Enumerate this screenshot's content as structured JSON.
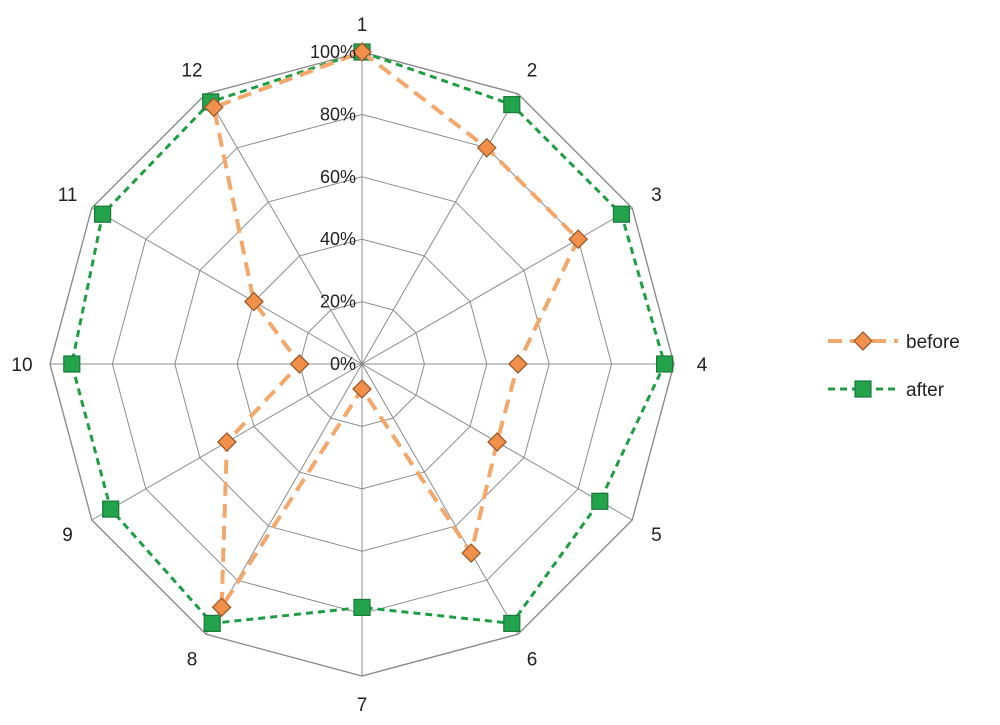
{
  "chart_data": {
    "type": "radar",
    "categories": [
      "1",
      "2",
      "3",
      "4",
      "5",
      "6",
      "7",
      "8",
      "9",
      "10",
      "11",
      "12"
    ],
    "r_ticks": [
      "0%",
      "20%",
      "40%",
      "60%",
      "80%",
      "100%"
    ],
    "r_range": [
      0,
      100
    ],
    "grid": true,
    "legend_position": "right",
    "series": [
      {
        "name": "before",
        "values": [
          100,
          80,
          80,
          50,
          50,
          70,
          8,
          90,
          50,
          20,
          40,
          95
        ],
        "color": "#F4A76B",
        "marker_fill": "#F0904A",
        "marker_stroke": "#9E5A2A",
        "marker": "diamond",
        "line_style": "dashed"
      },
      {
        "name": "after",
        "values": [
          100,
          96,
          96,
          97,
          88,
          96,
          78,
          96,
          93,
          93,
          96,
          97
        ],
        "color": "#1E9E43",
        "marker_fill": "#22A34C",
        "marker_stroke": "#1A7A37",
        "marker": "square",
        "line_style": "dashed"
      }
    ]
  }
}
